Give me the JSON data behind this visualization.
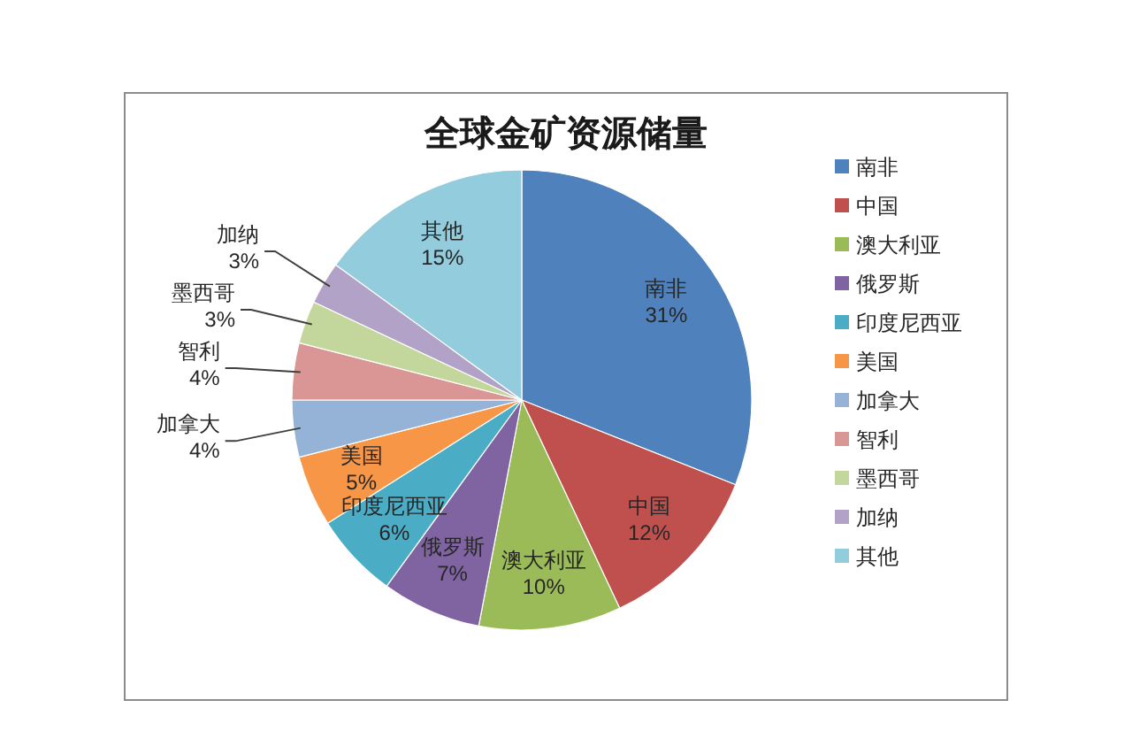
{
  "chart_data": {
    "type": "pie",
    "title": "全球金矿资源储量",
    "categories": [
      "南非",
      "中国",
      "澳大利亚",
      "俄罗斯",
      "印度尼西亚",
      "美国",
      "加拿大",
      "智利",
      "墨西哥",
      "加纳",
      "其他"
    ],
    "values": [
      31,
      12,
      10,
      7,
      6,
      5,
      4,
      4,
      3,
      3,
      15
    ],
    "value_labels": [
      "31%",
      "12%",
      "10%",
      "7%",
      "6%",
      "5%",
      "4%",
      "4%",
      "3%",
      "3%",
      "15%"
    ],
    "colors": [
      "#4f81bd",
      "#c0504d",
      "#9bbb59",
      "#8064a2",
      "#4bacc6",
      "#f79646",
      "#95b3d7",
      "#d99694",
      "#c3d69b",
      "#b3a2c7",
      "#93cddd"
    ],
    "legend": "right"
  }
}
